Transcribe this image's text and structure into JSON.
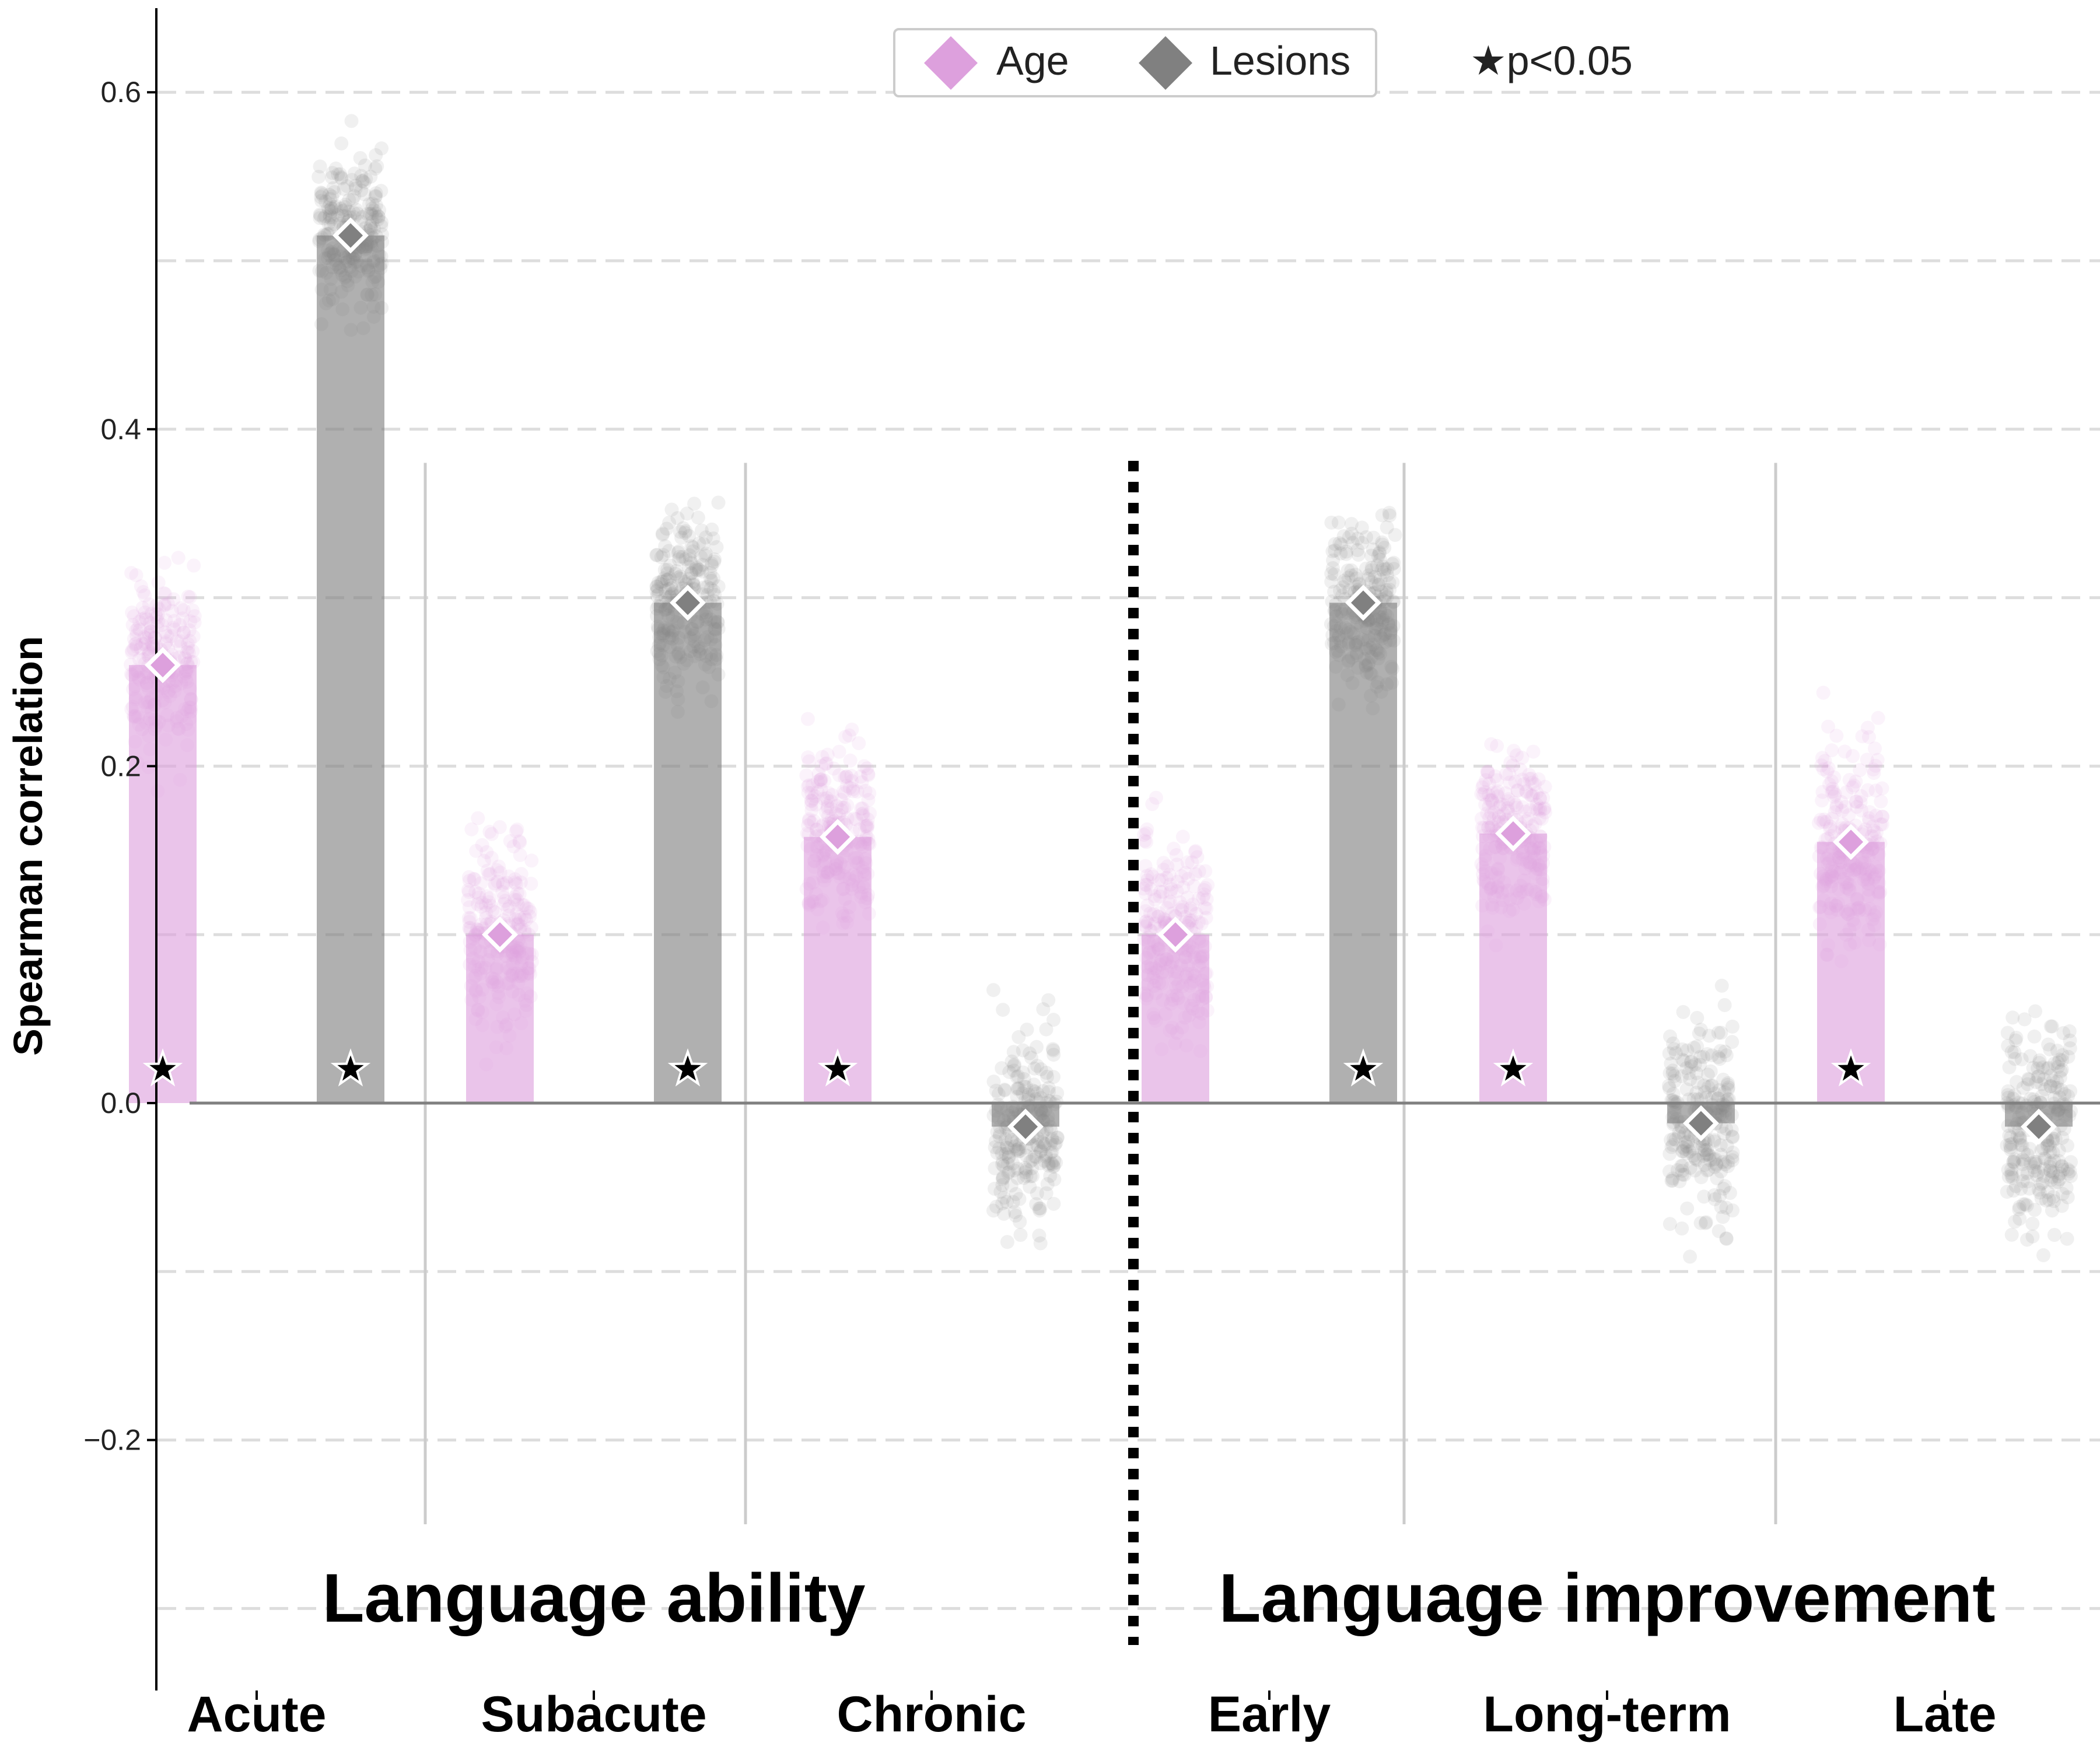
{
  "chart_data": {
    "type": "bar",
    "title": "",
    "xlabel": "",
    "ylabel": "Spearman correlation",
    "ylim": [
      -0.35,
      0.65
    ],
    "yticks": [
      0.6,
      0.4,
      0.2,
      0.0,
      -0.2
    ],
    "ytick_labels": [
      "0.6",
      "0.4",
      "0.2",
      "0.0",
      "−0.2"
    ],
    "grid": "horizontal dashed",
    "categories": [
      "Acute",
      "Subacute",
      "Chronic",
      "Early",
      "Long-term",
      "Late"
    ],
    "groups": [
      {
        "label": "Language ability",
        "categories": [
          "Acute",
          "Subacute",
          "Chronic"
        ]
      },
      {
        "label": "Language improvement",
        "categories": [
          "Early",
          "Long-term",
          "Late"
        ]
      }
    ],
    "series": [
      {
        "name": "Age",
        "color": "#dda0dd",
        "values": [
          0.26,
          0.1,
          0.158,
          0.1,
          0.16,
          0.155
        ],
        "significant": [
          true,
          false,
          true,
          false,
          true,
          true
        ],
        "spread": [
          [
            0.12,
            0.41
          ],
          [
            -0.07,
            0.26
          ],
          [
            0.03,
            0.32
          ],
          [
            -0.07,
            0.24
          ],
          [
            0.04,
            0.31
          ],
          [
            -0.01,
            0.33
          ]
        ]
      },
      {
        "name": "Lesions",
        "color": "#808080",
        "values": [
          0.515,
          0.297,
          -0.014,
          0.297,
          -0.012,
          -0.014
        ],
        "significant": [
          true,
          true,
          false,
          true,
          false,
          false
        ],
        "spread": [
          [
            0.37,
            0.62
          ],
          [
            0.15,
            0.44
          ],
          [
            -0.15,
            0.17
          ],
          [
            0.15,
            0.44
          ],
          [
            -0.2,
            0.14
          ],
          [
            -0.18,
            0.16
          ]
        ]
      }
    ],
    "legend": {
      "position": "top-center",
      "entries": [
        "Age",
        "Lesions"
      ],
      "note": "★p<0.05"
    },
    "colors": {
      "age": "#dda0dd",
      "lesions": "#808080",
      "grid": "#dddddd",
      "zero_line": "#808080",
      "separator": "#000000"
    }
  }
}
